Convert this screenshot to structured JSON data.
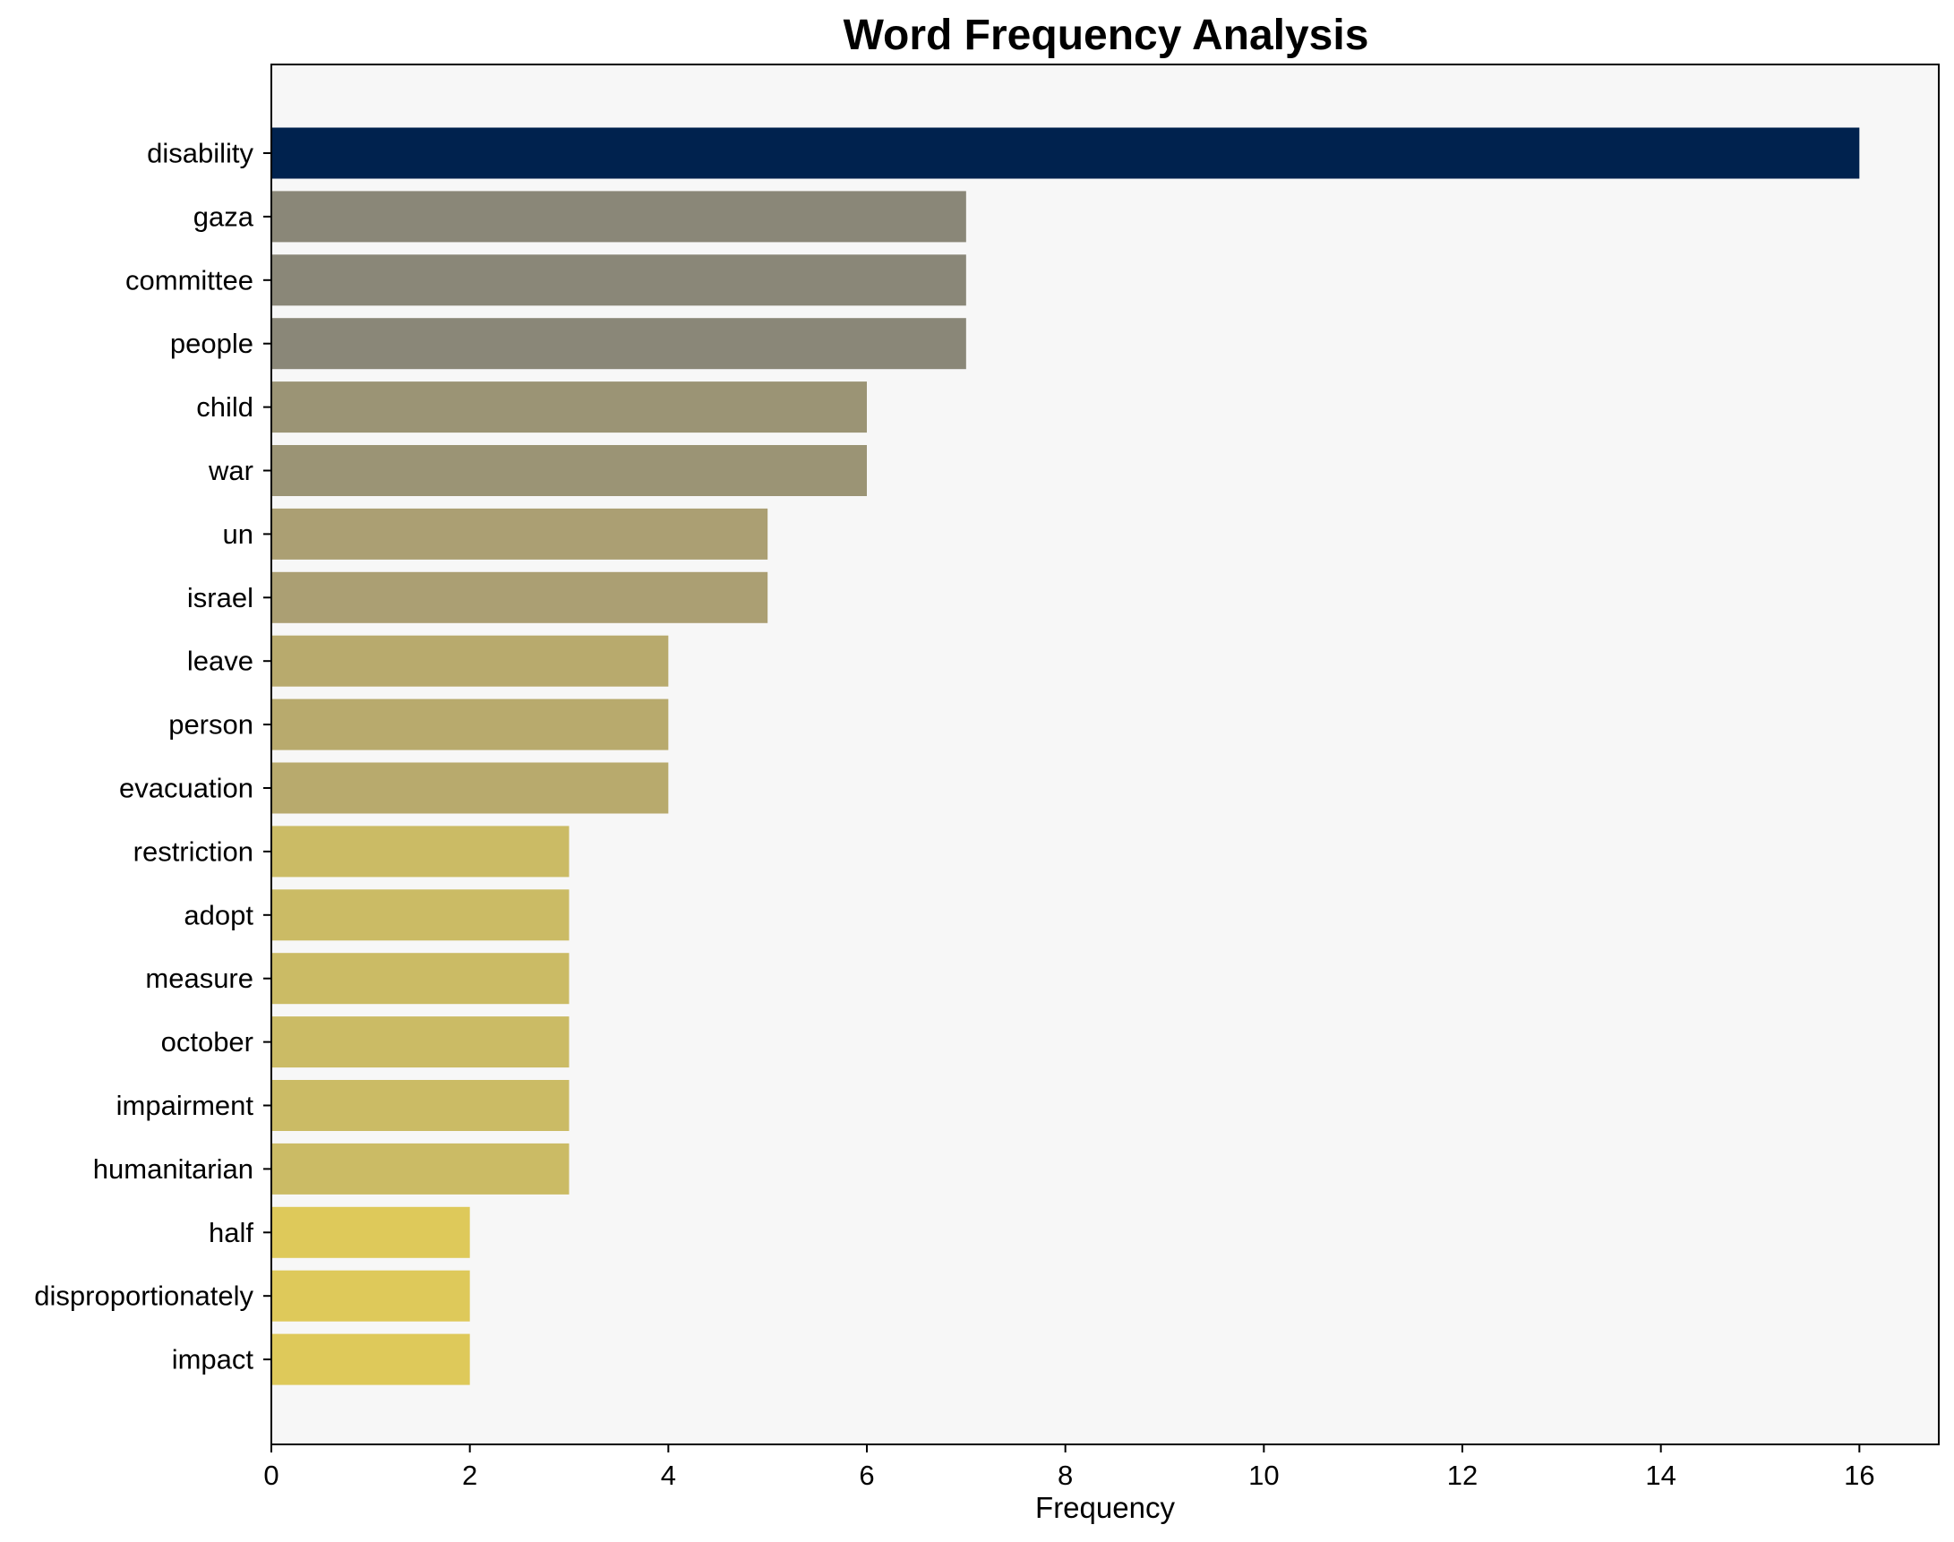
{
  "chart_data": {
    "type": "bar",
    "orientation": "horizontal",
    "title": "Word Frequency Analysis",
    "xlabel": "Frequency",
    "ylabel": "",
    "xlim": [
      0,
      16.8
    ],
    "xticks": [
      0,
      2,
      4,
      6,
      8,
      10,
      12,
      14,
      16
    ],
    "grid": false,
    "legend": "none",
    "categories": [
      "disability",
      "gaza",
      "committee",
      "people",
      "child",
      "war",
      "un",
      "israel",
      "leave",
      "person",
      "evacuation",
      "restriction",
      "adopt",
      "measure",
      "october",
      "impairment",
      "humanitarian",
      "half",
      "disproportionately",
      "impact"
    ],
    "values": [
      16,
      7,
      7,
      7,
      6,
      6,
      5,
      5,
      4,
      4,
      4,
      3,
      3,
      3,
      3,
      3,
      3,
      2,
      2,
      2
    ],
    "bar_colors": [
      "#00224e",
      "#8a8778",
      "#8a8778",
      "#8a8778",
      "#9b9475",
      "#9b9475",
      "#ab9f73",
      "#ab9f73",
      "#b8aa6d",
      "#b8aa6d",
      "#b8aa6d",
      "#cbbb65",
      "#cbbb65",
      "#cbbb65",
      "#cbbb65",
      "#cbbb65",
      "#cbbb65",
      "#dec95a",
      "#dec95a",
      "#dec95a"
    ],
    "plot_background": "#f7f7f7"
  }
}
